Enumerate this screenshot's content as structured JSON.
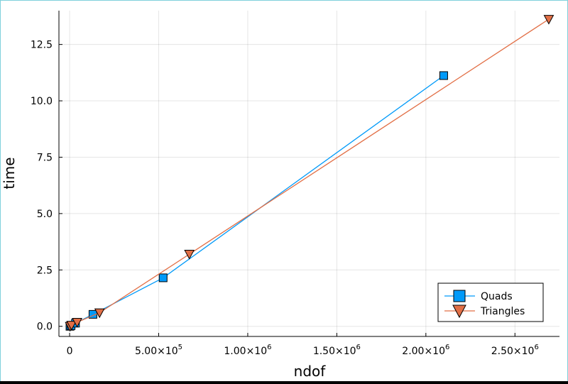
{
  "chart_data": {
    "type": "line",
    "title": "",
    "xlabel": "ndof",
    "ylabel": "time",
    "xlim": [
      -60000,
      2750000
    ],
    "ylim": [
      -0.45,
      14.0
    ],
    "x_ticks": [
      0,
      500000,
      1000000,
      1500000,
      2000000,
      2500000
    ],
    "x_tick_labels": [
      {
        "mant": "0",
        "exp": ""
      },
      {
        "mant": "5.00×10",
        "exp": "5"
      },
      {
        "mant": "1.00×10",
        "exp": "6"
      },
      {
        "mant": "1.50×10",
        "exp": "6"
      },
      {
        "mant": "2.00×10",
        "exp": "6"
      },
      {
        "mant": "2.50×10",
        "exp": "6"
      }
    ],
    "y_ticks": [
      0,
      2.5,
      5.0,
      7.5,
      10.0,
      12.5
    ],
    "y_tick_labels": [
      "0.0",
      "2.5",
      "5.0",
      "7.5",
      "10.0",
      "12.5"
    ],
    "grid": true,
    "legend_position": "bottom-right",
    "series": [
      {
        "name": "Quads",
        "color": "#009af9",
        "marker": "square",
        "x": [
          2000,
          8200,
          33000,
          131000,
          525000,
          2100000
        ],
        "y": [
          0.0,
          0.03,
          0.14,
          0.53,
          2.15,
          11.12
        ]
      },
      {
        "name": "Triangles",
        "color": "#e26f46",
        "marker": "triangle-down",
        "x": [
          2600,
          10500,
          42000,
          168000,
          672000,
          2690000
        ],
        "y": [
          0.0,
          0.05,
          0.18,
          0.6,
          3.2,
          13.62
        ]
      }
    ]
  }
}
